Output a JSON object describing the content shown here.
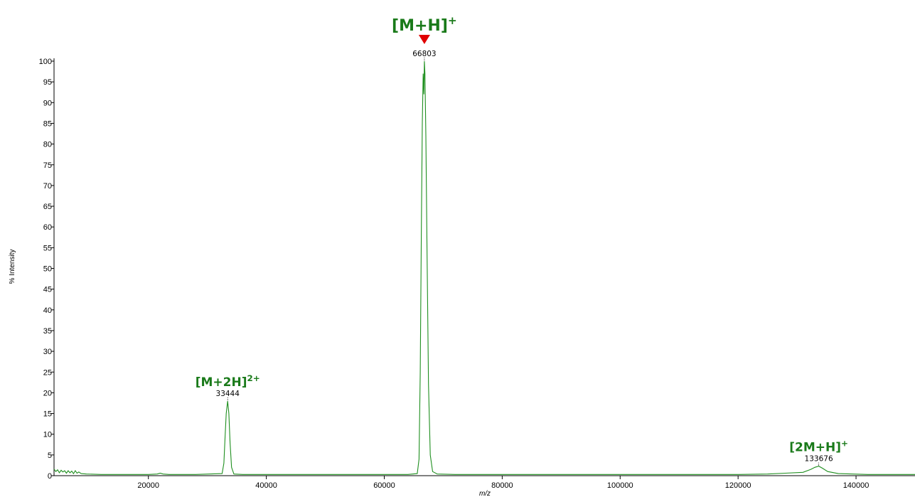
{
  "chart_data": {
    "type": "line",
    "title": "",
    "xlabel": "m/z",
    "ylabel": "% Intensity",
    "xlim": [
      4000,
      150000
    ],
    "ylim": [
      0,
      100
    ],
    "xticks": [
      20000,
      40000,
      60000,
      80000,
      100000,
      120000,
      140000
    ],
    "yticks": [
      0,
      5,
      10,
      15,
      20,
      25,
      30,
      35,
      40,
      45,
      50,
      55,
      60,
      65,
      70,
      75,
      80,
      85,
      90,
      95,
      100
    ],
    "grid": false,
    "line_color": "#1f8f1f",
    "peaks": [
      {
        "mz": 33444,
        "intensity": 18,
        "label": "33444",
        "ion": "[M+2H]",
        "charge": "2+"
      },
      {
        "mz": 66803,
        "intensity": 100,
        "label": "66803",
        "ion": "[M+H]",
        "charge": "+",
        "marker_color": "#e00000"
      },
      {
        "mz": 133676,
        "intensity": 2.3,
        "label": "133676",
        "ion": "[2M+H]",
        "charge": "+"
      }
    ],
    "series": [
      {
        "x": [
          4000,
          4300,
          4600,
          4900,
          5200,
          5500,
          5800,
          6100,
          6400,
          6700,
          7000,
          7300,
          7600,
          7900,
          8200,
          8600,
          9500,
          12000,
          16000,
          20000,
          21500,
          22000,
          22500,
          23500,
          28000,
          32500,
          32800,
          33000,
          33200,
          33444,
          33650,
          33850,
          34100,
          34500,
          36000,
          40000,
          46000,
          52000,
          58000,
          64000,
          65600,
          65900,
          66100,
          66300,
          66450,
          66600,
          66720,
          66803,
          66900,
          67050,
          67250,
          67500,
          67800,
          68200,
          69000,
          72000,
          80000,
          90000,
          100000,
          110000,
          120000,
          125000,
          128000,
          131000,
          132300,
          133000,
          133676,
          134300,
          135200,
          137000,
          142000,
          150000
        ],
        "y": [
          1.6,
          1.0,
          1.4,
          0.7,
          1.3,
          0.9,
          1.2,
          0.6,
          1.2,
          0.7,
          1.1,
          0.5,
          1.2,
          0.6,
          0.9,
          0.5,
          0.4,
          0.3,
          0.3,
          0.3,
          0.4,
          0.6,
          0.4,
          0.3,
          0.3,
          0.5,
          3.0,
          9.0,
          15.0,
          18.0,
          15.0,
          8.0,
          2.0,
          0.4,
          0.3,
          0.3,
          0.3,
          0.3,
          0.3,
          0.3,
          0.5,
          4.0,
          25.0,
          60.0,
          85.0,
          97.0,
          92.0,
          100.0,
          97.0,
          82.0,
          55.0,
          22.0,
          5.0,
          1.0,
          0.4,
          0.3,
          0.3,
          0.3,
          0.3,
          0.3,
          0.3,
          0.4,
          0.6,
          0.8,
          1.5,
          2.0,
          2.3,
          1.8,
          1.0,
          0.5,
          0.3,
          0.3
        ]
      }
    ]
  }
}
